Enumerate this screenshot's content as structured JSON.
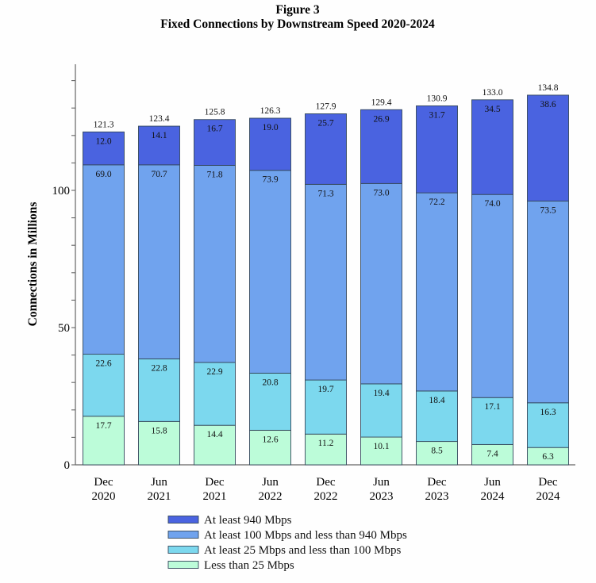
{
  "chart_data": {
    "type": "bar",
    "stacked": true,
    "title": "Figure 3",
    "subtitle": "Fixed Connections by Downstream Speed 2020-2024",
    "xlabel": "",
    "ylabel": "Connections in Millions",
    "ylim": [
      0,
      146
    ],
    "yticks": [
      0,
      50,
      100
    ],
    "yticks_labels": [
      "0",
      "50",
      "100"
    ],
    "yminor_step": 10,
    "grid": false,
    "legend_position": "bottom",
    "categories": [
      [
        "Dec",
        "2020"
      ],
      [
        "Jun",
        "2021"
      ],
      [
        "Dec",
        "2021"
      ],
      [
        "Jun",
        "2022"
      ],
      [
        "Dec",
        "2022"
      ],
      [
        "Jun",
        "2023"
      ],
      [
        "Dec",
        "2023"
      ],
      [
        "Jun",
        "2024"
      ],
      [
        "Dec",
        "2024"
      ]
    ],
    "totals": [
      "121.3",
      "123.4",
      "125.8",
      "126.3",
      "127.9",
      "129.4",
      "130.9",
      "133.0",
      "134.8"
    ],
    "series": [
      {
        "name": "Less than 25 Mbps",
        "color": "#bcfcd9",
        "values": [
          17.7,
          15.8,
          14.4,
          12.6,
          11.2,
          10.1,
          8.5,
          7.4,
          6.3
        ],
        "labels": [
          "17.7",
          "15.8",
          "14.4",
          "12.6",
          "11.2",
          "10.1",
          "8.5",
          "7.4",
          "6.3"
        ]
      },
      {
        "name": "At least 25 Mbps and less than 100 Mbps",
        "color": "#7cd8ee",
        "values": [
          22.6,
          22.8,
          22.9,
          20.8,
          19.7,
          19.4,
          18.4,
          17.1,
          16.3
        ],
        "labels": [
          "22.6",
          "22.8",
          "22.9",
          "20.8",
          "19.7",
          "19.4",
          "18.4",
          "17.1",
          "16.3"
        ]
      },
      {
        "name": "At least 100 Mbps and less than 940 Mbps",
        "color": "#70a3ee",
        "values": [
          69.0,
          70.7,
          71.8,
          73.9,
          71.3,
          73.0,
          72.2,
          74.0,
          73.5
        ],
        "labels": [
          "69.0",
          "70.7",
          "71.8",
          "73.9",
          "71.3",
          "73.0",
          "72.2",
          "74.0",
          "73.5"
        ]
      },
      {
        "name": "At least 940 Mbps",
        "color": "#4a63e0",
        "values": [
          12.0,
          14.1,
          16.7,
          19.0,
          25.7,
          26.9,
          31.7,
          34.5,
          38.6
        ],
        "labels": [
          "12.0",
          "14.1",
          "16.7",
          "19.0",
          "25.7",
          "26.9",
          "31.7",
          "34.5",
          "38.6"
        ]
      }
    ],
    "legend_order": [
      3,
      2,
      1,
      0
    ]
  }
}
